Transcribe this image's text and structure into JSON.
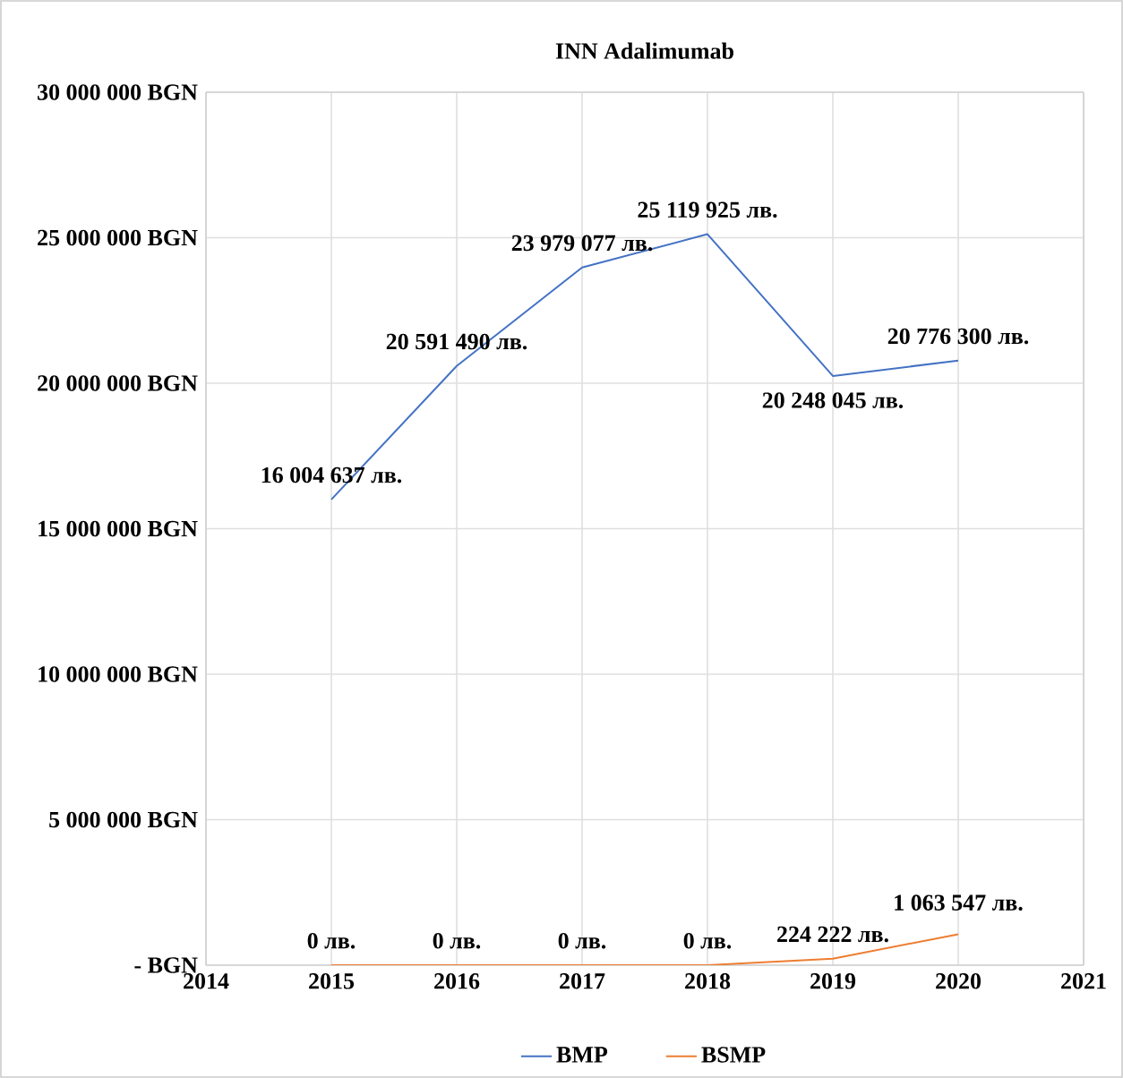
{
  "chart_data": {
    "type": "line",
    "title": "INN Adalimumab",
    "x": [
      2015,
      2016,
      2017,
      2018,
      2019,
      2020
    ],
    "xlim": [
      2014,
      2021
    ],
    "xticks": [
      2014,
      2015,
      2016,
      2017,
      2018,
      2019,
      2020,
      2021
    ],
    "ylim": [
      0,
      30000000
    ],
    "yticks": [
      {
        "value": 0,
        "label": "- BGN"
      },
      {
        "value": 5000000,
        "label": "5 000 000 BGN"
      },
      {
        "value": 10000000,
        "label": "10 000 000 BGN"
      },
      {
        "value": 15000000,
        "label": "15 000 000 BGN"
      },
      {
        "value": 20000000,
        "label": "20 000 000 BGN"
      },
      {
        "value": 25000000,
        "label": "25 000 000 BGN"
      },
      {
        "value": 30000000,
        "label": "30 000 000 BGN"
      }
    ],
    "series": [
      {
        "name": "BMP",
        "color": "#4472c4",
        "values": [
          16004637,
          20591490,
          23979077,
          25119925,
          20248045,
          20776300
        ],
        "value_labels": [
          "16 004 637 лв.",
          "20 591 490 лв.",
          "23 979 077 лв.",
          "25 119 925 лв.",
          "20 248 045 лв.",
          "20 776 300 лв."
        ]
      },
      {
        "name": "BSMP",
        "color": "#ed7d31",
        "values": [
          0,
          0,
          0,
          0,
          224222,
          1063547
        ],
        "value_labels": [
          "0 лв.",
          "0 лв.",
          "0 лв.",
          "0 лв.",
          "224 222 лв.",
          "1 063 547 лв."
        ]
      }
    ],
    "grid": true,
    "legend": "bottom",
    "line_style": "solid"
  }
}
